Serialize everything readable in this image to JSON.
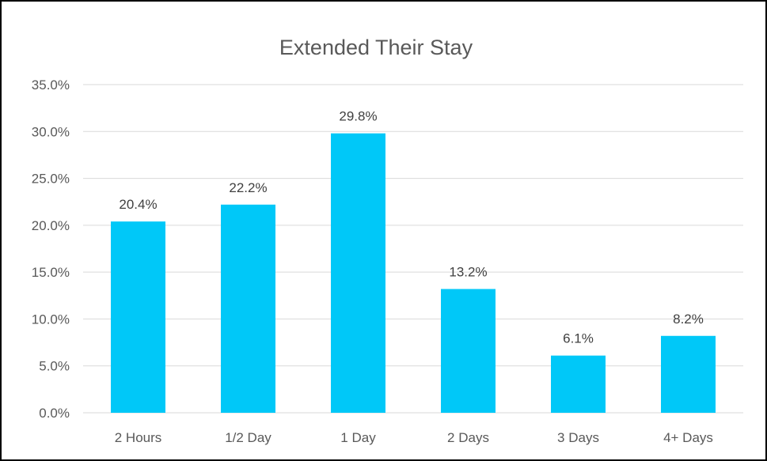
{
  "chart_data": {
    "type": "bar",
    "title": "Extended Their Stay",
    "xlabel": "",
    "ylabel": "",
    "categories": [
      "2 Hours",
      "1/2 Day",
      "1 Day",
      "2 Days",
      "3 Days",
      "4+ Days"
    ],
    "values": [
      20.4,
      22.2,
      29.8,
      13.2,
      6.1,
      8.2
    ],
    "data_labels": [
      "20.4%",
      "22.2%",
      "29.8%",
      "13.2%",
      "6.1%",
      "8.2%"
    ],
    "ylim": [
      0,
      35
    ],
    "y_ticks": [
      "0.0%",
      "5.0%",
      "10.0%",
      "15.0%",
      "20.0%",
      "25.0%",
      "30.0%",
      "35.0%"
    ],
    "grid": true,
    "legend": "none",
    "bar_color": "#00c8f8"
  }
}
